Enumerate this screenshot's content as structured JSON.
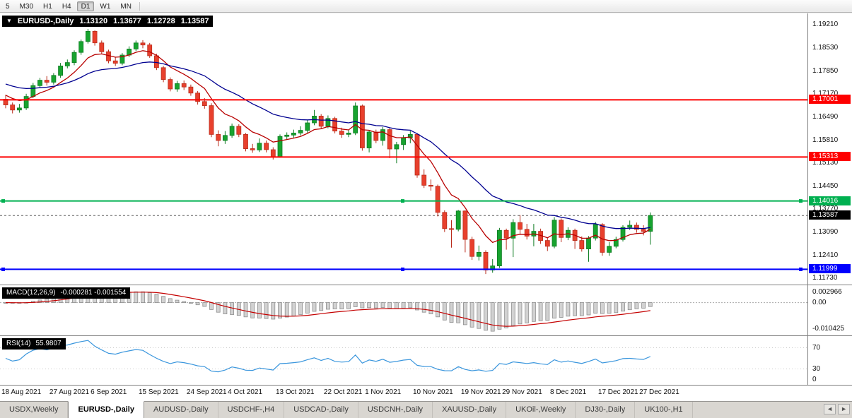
{
  "toolbar": {
    "periods": [
      "5",
      "M30",
      "H1",
      "H4",
      "D1",
      "W1",
      "MN"
    ],
    "active": "D1"
  },
  "chart_data": {
    "type": "candlestick",
    "title": "EURUSD-,Daily",
    "last_ohlc": {
      "open": "1.13120",
      "high": "1.13677",
      "low": "1.12728",
      "close": "1.13587"
    },
    "price_scale": {
      "top": 1.1955,
      "bottom": 1.1155
    },
    "y_ticks": [
      "1.19210",
      "1.18530",
      "1.17850",
      "1.17170",
      "1.16490",
      "1.15810",
      "1.15130",
      "1.14450",
      "1.13770",
      "1.13090",
      "1.12410",
      "1.11730"
    ],
    "colors": {
      "up_fill": "#17a32f",
      "up_stroke": "#0e7c22",
      "down_fill": "#e8402d",
      "down_stroke": "#b92c1b"
    },
    "candles": [
      [
        1.1702,
        1.1715,
        1.1675,
        1.1685
      ],
      [
        1.1685,
        1.1692,
        1.166,
        1.167
      ],
      [
        1.167,
        1.1688,
        1.1662,
        1.1676
      ],
      [
        1.1676,
        1.1718,
        1.167,
        1.171
      ],
      [
        1.171,
        1.175,
        1.1705,
        1.1742
      ],
      [
        1.1742,
        1.1765,
        1.1735,
        1.1758
      ],
      [
        1.1758,
        1.177,
        1.1742,
        1.1752
      ],
      [
        1.1752,
        1.1779,
        1.1745,
        1.1772
      ],
      [
        1.1772,
        1.1809,
        1.1765,
        1.18
      ],
      [
        1.18,
        1.1819,
        1.1793,
        1.181
      ],
      [
        1.181,
        1.1846,
        1.1802,
        1.184
      ],
      [
        1.184,
        1.1878,
        1.1833,
        1.1872
      ],
      [
        1.1872,
        1.1909,
        1.1866,
        1.1902
      ],
      [
        1.1902,
        1.1905,
        1.186,
        1.1868
      ],
      [
        1.1868,
        1.1875,
        1.1835,
        1.1842
      ],
      [
        1.1842,
        1.1848,
        1.1808,
        1.1815
      ],
      [
        1.1815,
        1.1827,
        1.18,
        1.1808
      ],
      [
        1.1808,
        1.1838,
        1.1802,
        1.1832
      ],
      [
        1.1832,
        1.1858,
        1.1826,
        1.185
      ],
      [
        1.185,
        1.1875,
        1.1844,
        1.1868
      ],
      [
        1.1868,
        1.1876,
        1.1852,
        1.1862
      ],
      [
        1.1862,
        1.1868,
        1.1824,
        1.183
      ],
      [
        1.183,
        1.1836,
        1.1788,
        1.1795
      ],
      [
        1.1795,
        1.18,
        1.1752,
        1.176
      ],
      [
        1.176,
        1.1766,
        1.1725,
        1.1732
      ],
      [
        1.1732,
        1.1756,
        1.1724,
        1.1748
      ],
      [
        1.1748,
        1.1757,
        1.1729,
        1.1738
      ],
      [
        1.1738,
        1.1745,
        1.1712,
        1.172
      ],
      [
        1.172,
        1.1726,
        1.1686,
        1.1695
      ],
      [
        1.1695,
        1.1705,
        1.1674,
        1.1683
      ],
      [
        1.1683,
        1.169,
        1.159,
        1.1598
      ],
      [
        1.1598,
        1.161,
        1.1563,
        1.158
      ],
      [
        1.158,
        1.1608,
        1.157,
        1.1595
      ],
      [
        1.1595,
        1.163,
        1.1588,
        1.1622
      ],
      [
        1.1622,
        1.1628,
        1.159,
        1.1598
      ],
      [
        1.1598,
        1.1602,
        1.1548,
        1.1556
      ],
      [
        1.1556,
        1.157,
        1.1544,
        1.1552
      ],
      [
        1.1552,
        1.1586,
        1.1546,
        1.1572
      ],
      [
        1.1572,
        1.158,
        1.1545,
        1.1553
      ],
      [
        1.1553,
        1.156,
        1.1524,
        1.1532
      ],
      [
        1.1532,
        1.1598,
        1.1529,
        1.1592
      ],
      [
        1.1592,
        1.1604,
        1.1582,
        1.1596
      ],
      [
        1.1596,
        1.1612,
        1.1588,
        1.1602
      ],
      [
        1.1602,
        1.1622,
        1.1595,
        1.161
      ],
      [
        1.161,
        1.164,
        1.1602,
        1.1632
      ],
      [
        1.1632,
        1.167,
        1.1625,
        1.1652
      ],
      [
        1.1652,
        1.1658,
        1.1614,
        1.1622
      ],
      [
        1.1622,
        1.1654,
        1.1616,
        1.1645
      ],
      [
        1.1645,
        1.165,
        1.1601,
        1.1608
      ],
      [
        1.1608,
        1.1618,
        1.1588,
        1.1598
      ],
      [
        1.1598,
        1.1612,
        1.159,
        1.1602
      ],
      [
        1.1602,
        1.1692,
        1.1596,
        1.1682
      ],
      [
        1.1682,
        1.1686,
        1.155,
        1.1558
      ],
      [
        1.1558,
        1.161,
        1.1545,
        1.1605
      ],
      [
        1.1605,
        1.1612,
        1.1572,
        1.158
      ],
      [
        1.158,
        1.162,
        1.1565,
        1.1612
      ],
      [
        1.1612,
        1.1618,
        1.1528,
        1.1555
      ],
      [
        1.1555,
        1.1576,
        1.1513,
        1.1568
      ],
      [
        1.1568,
        1.1596,
        1.1552,
        1.1588
      ],
      [
        1.1588,
        1.1608,
        1.1572,
        1.1598
      ],
      [
        1.1598,
        1.1602,
        1.147,
        1.1478
      ],
      [
        1.1478,
        1.1495,
        1.144,
        1.1448
      ],
      [
        1.1448,
        1.1465,
        1.1432,
        1.1445
      ],
      [
        1.1445,
        1.145,
        1.1356,
        1.1368
      ],
      [
        1.1368,
        1.1374,
        1.131,
        1.132
      ],
      [
        1.132,
        1.1345,
        1.1264,
        1.1318
      ],
      [
        1.1318,
        1.1375,
        1.1312,
        1.1372
      ],
      [
        1.1372,
        1.1374,
        1.125,
        1.1288
      ],
      [
        1.1288,
        1.1296,
        1.1228,
        1.1238
      ],
      [
        1.1238,
        1.127,
        1.1226,
        1.125
      ],
      [
        1.125,
        1.1256,
        1.1186,
        1.1198
      ],
      [
        1.1198,
        1.123,
        1.119,
        1.121
      ],
      [
        1.121,
        1.1322,
        1.1204,
        1.1315
      ],
      [
        1.1315,
        1.132,
        1.1258,
        1.1292
      ],
      [
        1.1292,
        1.1348,
        1.1236,
        1.1338
      ],
      [
        1.1338,
        1.136,
        1.1302,
        1.1318
      ],
      [
        1.1318,
        1.1334,
        1.1288,
        1.1298
      ],
      [
        1.1298,
        1.1334,
        1.1268,
        1.1312
      ],
      [
        1.1312,
        1.132,
        1.1275,
        1.1285
      ],
      [
        1.1285,
        1.1292,
        1.1254,
        1.1268
      ],
      [
        1.1268,
        1.1354,
        1.1262,
        1.1345
      ],
      [
        1.1345,
        1.135,
        1.128,
        1.1294
      ],
      [
        1.1294,
        1.1324,
        1.1286,
        1.1315
      ],
      [
        1.1315,
        1.132,
        1.126,
        1.1285
      ],
      [
        1.1285,
        1.1297,
        1.1252,
        1.126
      ],
      [
        1.126,
        1.1298,
        1.1222,
        1.1292
      ],
      [
        1.1292,
        1.134,
        1.1285,
        1.1332
      ],
      [
        1.1332,
        1.1336,
        1.124,
        1.125
      ],
      [
        1.125,
        1.128,
        1.124,
        1.1268
      ],
      [
        1.1268,
        1.1296,
        1.1262,
        1.1288
      ],
      [
        1.1288,
        1.133,
        1.1282,
        1.1324
      ],
      [
        1.1324,
        1.1344,
        1.1316,
        1.133
      ],
      [
        1.133,
        1.1338,
        1.1308,
        1.1318
      ],
      [
        1.1318,
        1.133,
        1.13,
        1.1312
      ],
      [
        1.1312,
        1.13677,
        1.12728,
        1.13587
      ]
    ],
    "moving_averages": [
      {
        "period": 8,
        "seed": 1.1722,
        "color": "#b80000"
      },
      {
        "period": 24,
        "seed": 1.1752,
        "color": "#000090"
      }
    ],
    "levels": [
      {
        "price": 1.17001,
        "label": "1.17001",
        "color": "#fe0000",
        "handles": false
      },
      {
        "price": 1.15313,
        "label": "1.15313",
        "color": "#fe0000",
        "handles": false
      },
      {
        "price": 1.14016,
        "label": "1.14016",
        "color": "#00b050",
        "handles": true
      },
      {
        "price": 1.11999,
        "label": "1.11999",
        "color": "#0000fe",
        "handles": true
      }
    ],
    "current_price": 1.13587,
    "current_price_label": "1.13587",
    "x_labels": [
      {
        "text": "18 Aug 2021",
        "index": 0
      },
      {
        "text": "27 Aug 2021",
        "index": 7
      },
      {
        "text": "6 Sep 2021",
        "index": 13
      },
      {
        "text": "15 Sep 2021",
        "index": 20
      },
      {
        "text": "24 Sep 2021",
        "index": 27
      },
      {
        "text": "4 Oct 2021",
        "index": 33
      },
      {
        "text": "13 Oct 2021",
        "index": 40
      },
      {
        "text": "22 Oct 2021",
        "index": 47
      },
      {
        "text": "1 Nov 2021",
        "index": 53
      },
      {
        "text": "10 Nov 2021",
        "index": 60
      },
      {
        "text": "19 Nov 2021",
        "index": 67
      },
      {
        "text": "29 Nov 2021",
        "index": 73
      },
      {
        "text": "8 Dec 2021",
        "index": 80
      },
      {
        "text": "17 Dec 2021",
        "index": 87
      },
      {
        "text": "27 Dec 2021",
        "index": 93
      }
    ],
    "macd": {
      "label": "MACD(12,26,9)",
      "display_values": "-0.000281 -0.001554",
      "fast": 12,
      "slow": 26,
      "signal": 9,
      "axis_labels": [
        "0.002966",
        "0.00",
        "-0.010425"
      ],
      "histogram_fill": "#d2d2d2",
      "histogram_stroke": "#8e8e8e",
      "signal_color": "#c40000"
    },
    "rsi": {
      "label": "RSI(14)",
      "display_value": "55.9807",
      "period": 14,
      "axis_labels": [
        "70",
        "30",
        "0"
      ],
      "level_values": [
        70,
        30
      ],
      "line_color": "#3a96dd",
      "scale_max": 92
    }
  },
  "tabs": {
    "items": [
      "USDX,Weekly",
      "EURUSD-,Daily",
      "AUDUSD-,Daily",
      "USDCHF-,H4",
      "USDCAD-,Daily",
      "USDCNH-,Daily",
      "XAUUSD-,Daily",
      "UKOil-,Weekly",
      "DJ30-,Daily",
      "UK100-,H1"
    ],
    "active_index": 1,
    "scroll_left": "◄",
    "scroll_right": "►"
  }
}
